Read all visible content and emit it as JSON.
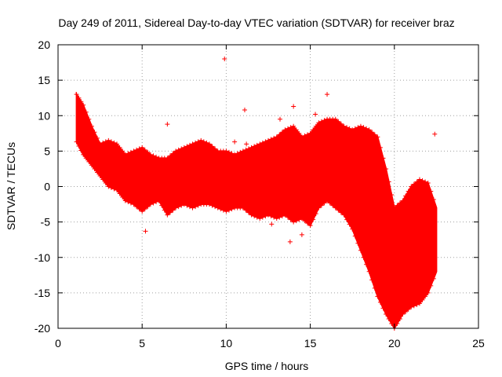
{
  "chart_data": {
    "type": "scatter",
    "title": "Day 249 of 2011, Sidereal Day-to-day VTEC variation (SDTVAR) for receiver braz",
    "xlabel": "GPS time / hours",
    "ylabel": "SDTVAR / TECUs",
    "xlim": [
      0,
      25
    ],
    "ylim": [
      -20,
      20
    ],
    "xticks": [
      "0",
      "5",
      "10",
      "15",
      "20",
      "25"
    ],
    "yticks": [
      "-20",
      "-15",
      "-10",
      "-5",
      "0",
      "5",
      "10",
      "15",
      "20"
    ],
    "grid": true,
    "marker": "+",
    "series_color": "#ff0000",
    "series": [
      {
        "name": "SDTVAR",
        "band": [
          {
            "x": 1.1,
            "low": 6.3,
            "high": 13.0
          },
          {
            "x": 1.5,
            "low": 4.5,
            "high": 11.5
          },
          {
            "x": 2.0,
            "low": 3.0,
            "high": 8.5
          },
          {
            "x": 2.5,
            "low": 1.5,
            "high": 6.0
          },
          {
            "x": 3.0,
            "low": 0.0,
            "high": 6.5
          },
          {
            "x": 3.5,
            "low": -0.5,
            "high": 6.0
          },
          {
            "x": 4.0,
            "low": -2.0,
            "high": 4.5
          },
          {
            "x": 4.5,
            "low": -2.5,
            "high": 5.0
          },
          {
            "x": 5.0,
            "low": -3.5,
            "high": 5.5
          },
          {
            "x": 5.5,
            "low": -2.5,
            "high": 4.5
          },
          {
            "x": 6.0,
            "low": -2.0,
            "high": 4.0
          },
          {
            "x": 6.5,
            "low": -4.0,
            "high": 4.0
          },
          {
            "x": 7.0,
            "low": -3.0,
            "high": 5.0
          },
          {
            "x": 7.5,
            "low": -2.5,
            "high": 5.5
          },
          {
            "x": 8.0,
            "low": -3.0,
            "high": 6.0
          },
          {
            "x": 8.5,
            "low": -2.5,
            "high": 6.5
          },
          {
            "x": 9.0,
            "low": -2.5,
            "high": 6.0
          },
          {
            "x": 9.5,
            "low": -3.0,
            "high": 5.0
          },
          {
            "x": 10.0,
            "low": -3.5,
            "high": 5.0
          },
          {
            "x": 10.5,
            "low": -3.0,
            "high": 4.5
          },
          {
            "x": 11.0,
            "low": -3.0,
            "high": 5.0
          },
          {
            "x": 11.5,
            "low": -4.0,
            "high": 5.5
          },
          {
            "x": 12.0,
            "low": -4.5,
            "high": 6.0
          },
          {
            "x": 12.5,
            "low": -4.0,
            "high": 6.5
          },
          {
            "x": 13.0,
            "low": -4.5,
            "high": 7.0
          },
          {
            "x": 13.5,
            "low": -4.0,
            "high": 8.0
          },
          {
            "x": 14.0,
            "low": -5.0,
            "high": 8.5
          },
          {
            "x": 14.5,
            "low": -4.5,
            "high": 7.0
          },
          {
            "x": 15.0,
            "low": -5.5,
            "high": 7.5
          },
          {
            "x": 15.5,
            "low": -3.0,
            "high": 9.0
          },
          {
            "x": 16.0,
            "low": -2.0,
            "high": 9.5
          },
          {
            "x": 16.5,
            "low": -3.0,
            "high": 9.5
          },
          {
            "x": 17.0,
            "low": -4.0,
            "high": 8.5
          },
          {
            "x": 17.5,
            "low": -6.0,
            "high": 8.0
          },
          {
            "x": 18.0,
            "low": -9.0,
            "high": 8.5
          },
          {
            "x": 18.5,
            "low": -12.0,
            "high": 8.0
          },
          {
            "x": 19.0,
            "low": -15.5,
            "high": 7.0
          },
          {
            "x": 19.5,
            "low": -18.0,
            "high": 2.5
          },
          {
            "x": 20.0,
            "low": -20.0,
            "high": -3.0
          },
          {
            "x": 20.5,
            "low": -18.0,
            "high": -2.0
          },
          {
            "x": 21.0,
            "low": -17.0,
            "high": 0.0
          },
          {
            "x": 21.5,
            "low": -16.5,
            "high": 1.0
          },
          {
            "x": 22.0,
            "low": -15.0,
            "high": 0.5
          },
          {
            "x": 22.5,
            "low": -12.0,
            "high": -3.0
          }
        ],
        "outliers": [
          {
            "x": 6.5,
            "y": 8.8
          },
          {
            "x": 9.9,
            "y": 18.0
          },
          {
            "x": 11.1,
            "y": 10.8
          },
          {
            "x": 14.0,
            "y": 11.3
          },
          {
            "x": 15.3,
            "y": 10.2
          },
          {
            "x": 16.0,
            "y": 13.0
          },
          {
            "x": 22.4,
            "y": 7.4
          },
          {
            "x": 13.8,
            "y": -7.8
          },
          {
            "x": 14.5,
            "y": -6.8
          },
          {
            "x": 5.2,
            "y": -6.3
          },
          {
            "x": 12.7,
            "y": -5.3
          },
          {
            "x": 11.2,
            "y": 6.0
          },
          {
            "x": 13.2,
            "y": 9.5
          },
          {
            "x": 10.5,
            "y": 6.3
          }
        ]
      }
    ]
  }
}
